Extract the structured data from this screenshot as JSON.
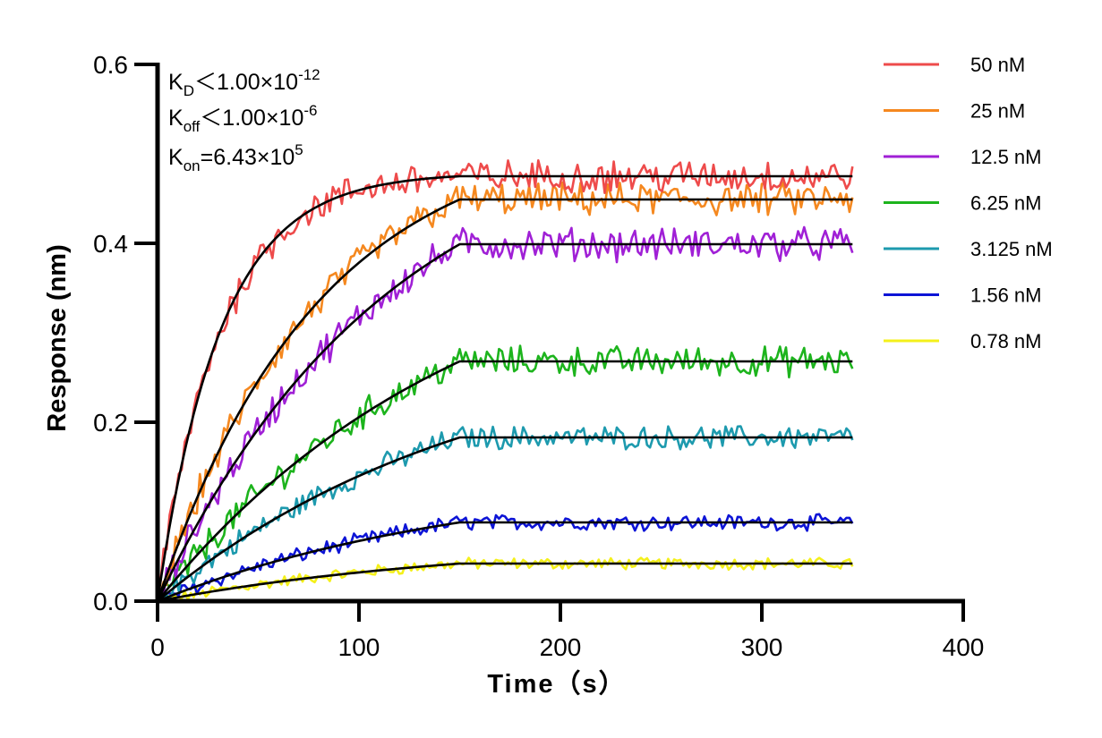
{
  "chart_data": {
    "type": "line",
    "title": "",
    "xlabel": "Time（s）",
    "ylabel": "Response (nm)",
    "xlim": [
      0,
      400
    ],
    "ylim": [
      0,
      0.6
    ],
    "x_ticks": [
      "0",
      "100",
      "200",
      "300",
      "400"
    ],
    "y_ticks": [
      "0.0",
      "0.2",
      "0.4",
      "0.6"
    ],
    "x_tick_values": [
      0,
      100,
      200,
      300,
      400
    ],
    "y_tick_values": [
      0,
      0.2,
      0.4,
      0.6
    ],
    "grid": false,
    "legend_position": "right",
    "association_end": 150,
    "time_end": 345,
    "annotations": {
      "kd": {
        "base": "K",
        "sub": "D",
        "rel": "＜",
        "mant": "1.00×10",
        "exp": "-12"
      },
      "koff": {
        "base": "K",
        "sub": "off",
        "rel": "＜",
        "mant": "1.00×10",
        "exp": "-6"
      },
      "kon": {
        "base": "K",
        "sub": "on",
        "rel": "=",
        "mant": "6.43×10",
        "exp": "5"
      }
    },
    "fit_color": "#000000",
    "series": [
      {
        "name": "50 nM",
        "color": "#EE4B4B",
        "plateau": 0.475,
        "k": 0.032
      },
      {
        "name": "25 nM",
        "color": "#F5881F",
        "plateau": 0.449,
        "k": 0.0125
      },
      {
        "name": "12.5 nM",
        "color": "#A020D6",
        "plateau": 0.399,
        "k": 0.0086
      },
      {
        "name": "6.25 nM",
        "color": "#1DB41D",
        "plateau": 0.268,
        "k": 0.0065
      },
      {
        "name": "3.125 nM",
        "color": "#1D9AAE",
        "plateau": 0.183,
        "k": 0.0063
      },
      {
        "name": "1.56 nM",
        "color": "#0D14D6",
        "plateau": 0.088,
        "k": 0.0063
      },
      {
        "name": "0.78 nM",
        "color": "#F4F01A",
        "plateau": 0.042,
        "k": 0.0063
      }
    ]
  }
}
